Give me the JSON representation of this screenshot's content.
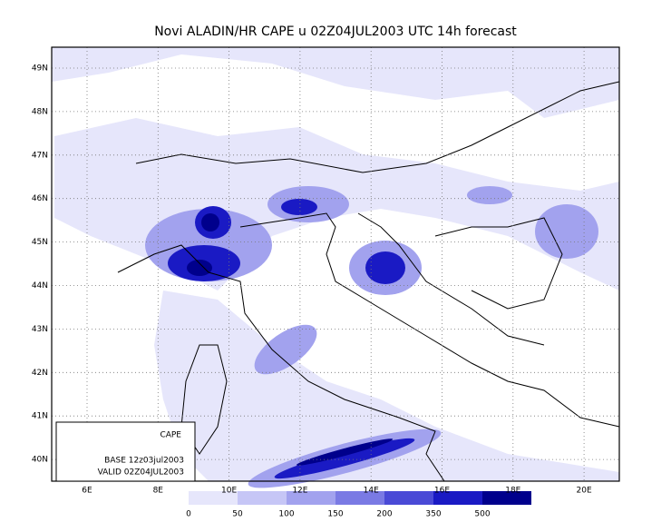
{
  "title": "Novi ALADIN/HR CAPE u 02Z04JUL2003 UTC 14h forecast",
  "map": {
    "lat_labels": [
      "49N",
      "48N",
      "47N",
      "46N",
      "45N",
      "44N",
      "43N",
      "42N",
      "41N",
      "40N"
    ],
    "lon_labels": [
      "6E",
      "8E",
      "10E",
      "12E",
      "14E",
      "16E",
      "18E",
      "20E"
    ]
  },
  "info_box": {
    "title": "CAPE",
    "base": "BASE 12z03jul2003",
    "valid": "VALID 02Z04JUL2003"
  },
  "legend": {
    "labels": [
      "0",
      "50",
      "100",
      "150",
      "200",
      "350",
      "500"
    ],
    "colors": [
      "#e6e6fb",
      "#c6c6f6",
      "#a2a2ee",
      "#7a7ae4",
      "#4a4ad6",
      "#1a1ac4",
      "#00008c"
    ]
  }
}
